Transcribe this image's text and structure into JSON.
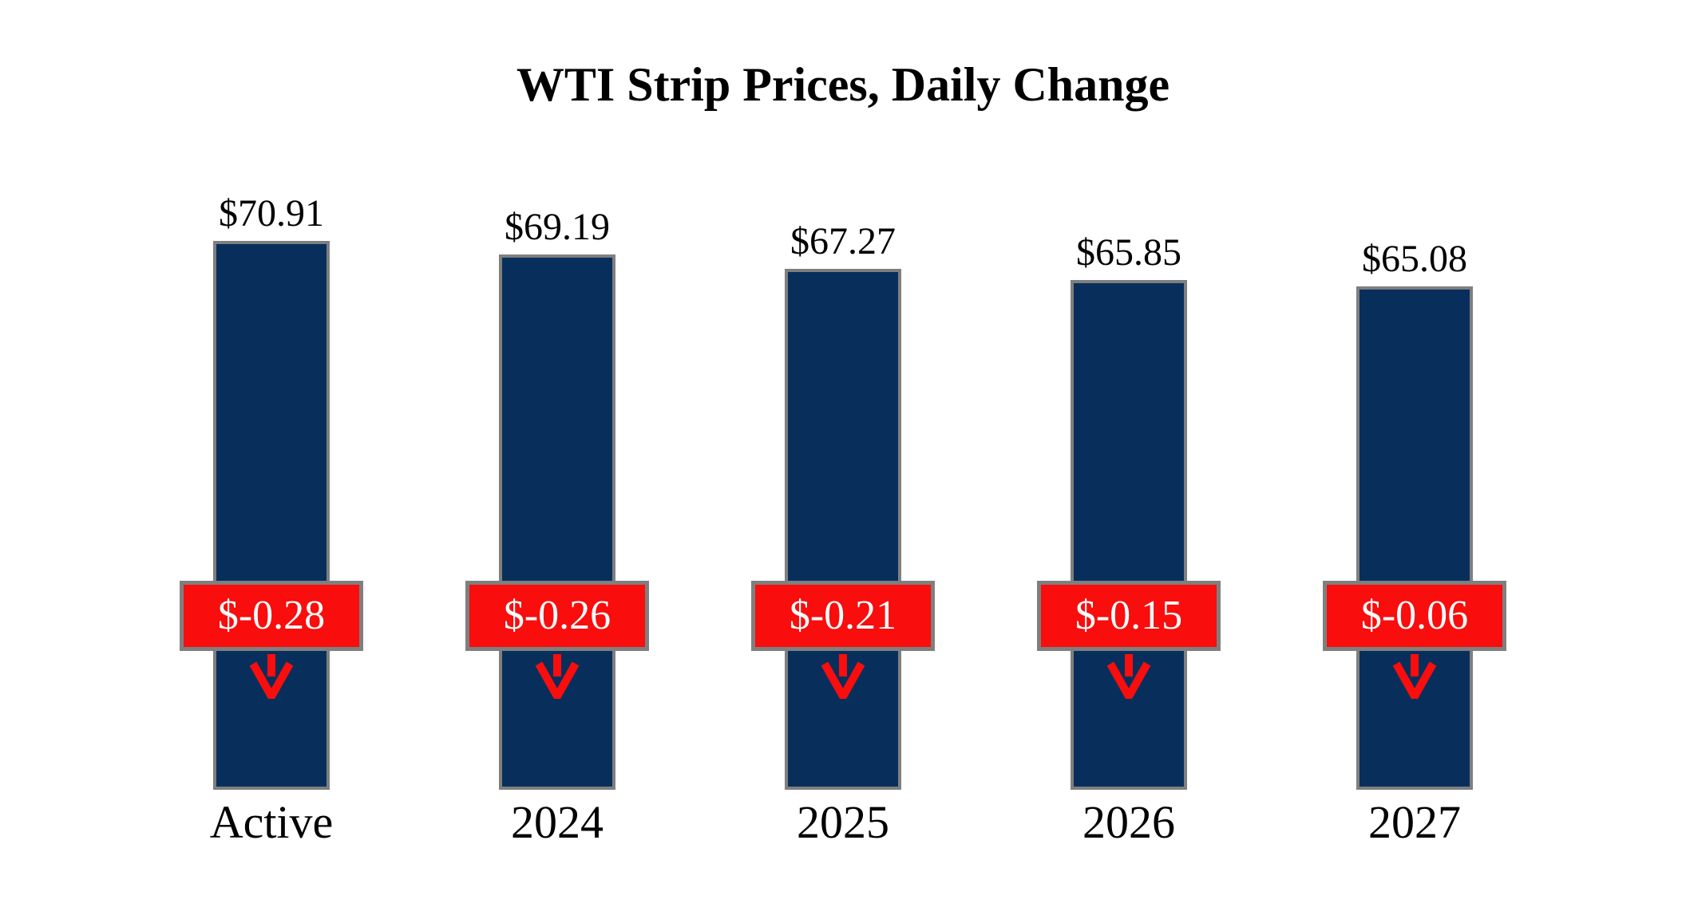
{
  "title": "WTI Strip Prices, Daily Change",
  "colors": {
    "bar_fill": "#082f5c",
    "bar_border": "#7f7f7f",
    "badge_fill": "#f90d0d",
    "badge_border": "#7f7f7f",
    "badge_text": "#ffffff",
    "arrow": "#f90d0d",
    "label_text": "#000000",
    "background": "#ffffff"
  },
  "chart_data": {
    "type": "bar",
    "title": "WTI Strip Prices, Daily Change",
    "xlabel": "",
    "ylabel": "",
    "ylim": [
      0,
      73
    ],
    "grid": false,
    "legend": false,
    "categories": [
      "Active",
      "2024",
      "2025",
      "2026",
      "2027"
    ],
    "series": [
      {
        "name": "Strip Price ($)",
        "values": [
          70.91,
          69.19,
          67.27,
          65.85,
          65.08
        ]
      },
      {
        "name": "Daily Change ($)",
        "values": [
          -0.28,
          -0.26,
          -0.21,
          -0.15,
          -0.06
        ]
      }
    ],
    "bars": [
      {
        "category": "Active",
        "value": 70.91,
        "price_label": "$70.91",
        "change": -0.28,
        "change_label": "$-0.28"
      },
      {
        "category": "2024",
        "value": 69.19,
        "price_label": "$69.19",
        "change": -0.26,
        "change_label": "$-0.26"
      },
      {
        "category": "2025",
        "value": 67.27,
        "price_label": "$67.27",
        "change": -0.21,
        "change_label": "$-0.21"
      },
      {
        "category": "2026",
        "value": 65.85,
        "price_label": "$65.85",
        "change": -0.15,
        "change_label": "$-0.15"
      },
      {
        "category": "2027",
        "value": 65.08,
        "price_label": "$65.08",
        "change": -0.06,
        "change_label": "$-0.06"
      }
    ]
  }
}
